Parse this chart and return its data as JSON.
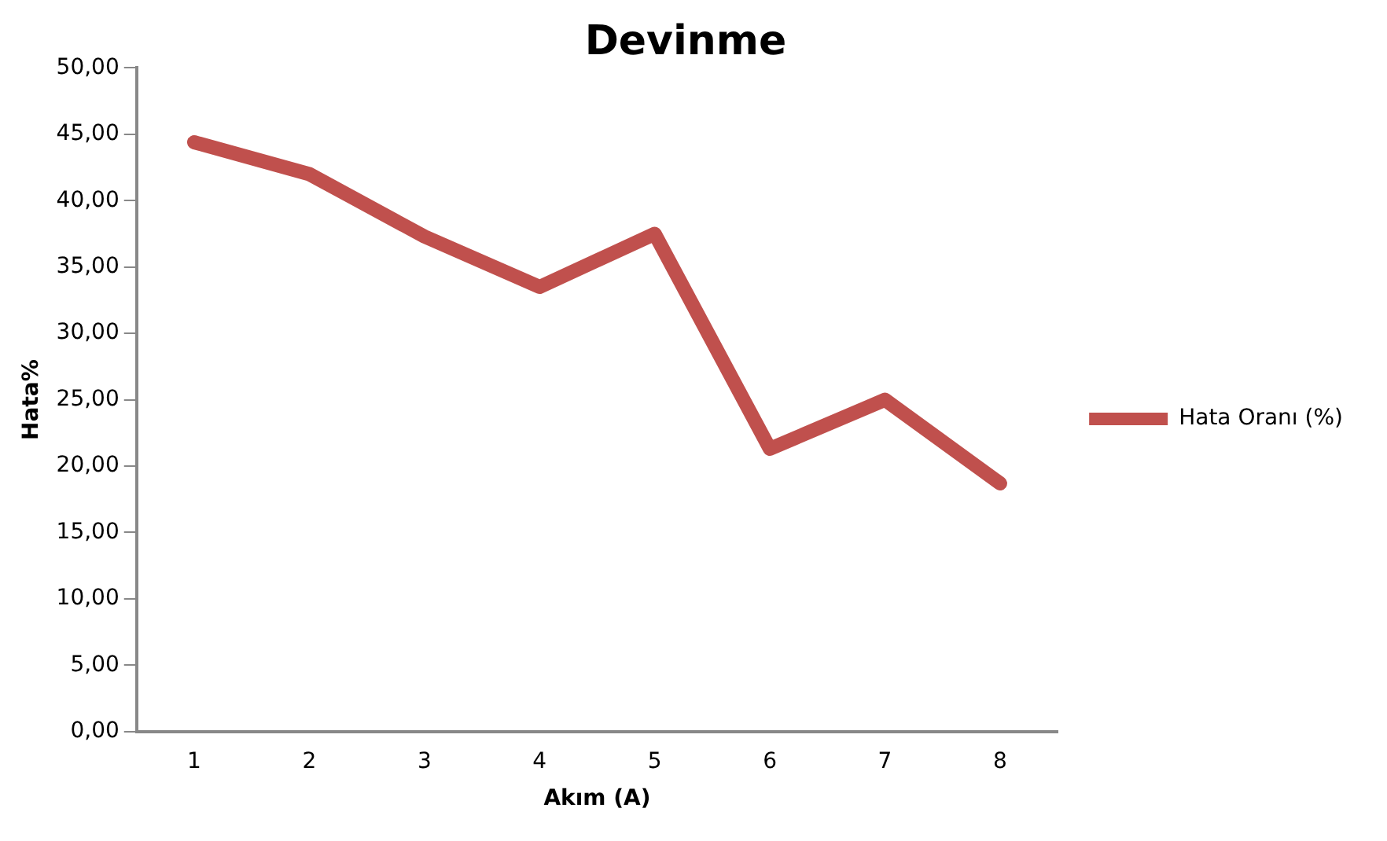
{
  "chart_data": {
    "type": "line",
    "title": "Devinme",
    "xlabel": "Akım (A)",
    "ylabel": "Hata%",
    "categories": [
      "1",
      "2",
      "3",
      "4",
      "5",
      "6",
      "7",
      "8"
    ],
    "series": [
      {
        "name": "Hata Oranı (%)",
        "color": "#c0504d",
        "values": [
          44.4,
          42.0,
          37.3,
          33.5,
          37.5,
          21.3,
          25.0,
          18.7
        ]
      }
    ],
    "ylim": [
      0,
      50
    ],
    "yticks": [
      {
        "value": 0,
        "label": "0,00"
      },
      {
        "value": 5,
        "label": "5,00"
      },
      {
        "value": 10,
        "label": "10,00"
      },
      {
        "value": 15,
        "label": "15,00"
      },
      {
        "value": 20,
        "label": "20,00"
      },
      {
        "value": 25,
        "label": "25,00"
      },
      {
        "value": 30,
        "label": "30,00"
      },
      {
        "value": 35,
        "label": "35,00"
      },
      {
        "value": 40,
        "label": "40,00"
      },
      {
        "value": 45,
        "label": "45,00"
      },
      {
        "value": 50,
        "label": "50,00"
      }
    ],
    "grid": false,
    "legend": "right",
    "marker": "none",
    "line_style": "solid"
  }
}
